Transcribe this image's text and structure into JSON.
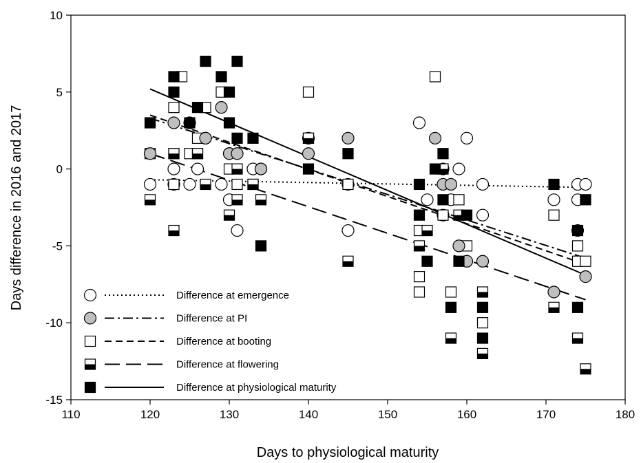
{
  "chart_data": {
    "type": "scatter",
    "xlabel": "Days to physiological maturity",
    "ylabel": "Days difference in 2016 and 2017",
    "xlim": [
      110,
      180
    ],
    "ylim": [
      -15,
      10
    ],
    "xticks": [
      110,
      120,
      130,
      140,
      150,
      160,
      170,
      180
    ],
    "yticks": [
      -15,
      -10,
      -5,
      0,
      5,
      10
    ],
    "grid": false,
    "legend_position": "bottom-left",
    "series": [
      {
        "name": "Difference at emergence",
        "marker": "open-circle",
        "line_style": "dotted",
        "color": "#000000",
        "fill": "#ffffff",
        "points": [
          [
            120,
            -1
          ],
          [
            123,
            0
          ],
          [
            123,
            -1
          ],
          [
            125,
            -1
          ],
          [
            126,
            0
          ],
          [
            127,
            2
          ],
          [
            129,
            -1
          ],
          [
            130,
            -2
          ],
          [
            130,
            1
          ],
          [
            131,
            -4
          ],
          [
            133,
            0
          ],
          [
            134,
            0
          ],
          [
            140,
            2
          ],
          [
            145,
            -4
          ],
          [
            145,
            -1
          ],
          [
            154,
            3
          ],
          [
            155,
            -2
          ],
          [
            157,
            -3
          ],
          [
            158,
            -2
          ],
          [
            159,
            0
          ],
          [
            160,
            2
          ],
          [
            162,
            -1
          ],
          [
            162,
            -3
          ],
          [
            171,
            -2
          ],
          [
            174,
            -1
          ],
          [
            174,
            -2
          ],
          [
            175,
            -1
          ]
        ],
        "trend": {
          "x": [
            120,
            175
          ],
          "y": [
            -0.7,
            -1.2
          ]
        }
      },
      {
        "name": "Difference at PI",
        "marker": "grey-circle",
        "line_style": "dash-dot",
        "color": "#000000",
        "fill": "#bfbfbf",
        "points": [
          [
            120,
            1
          ],
          [
            123,
            3
          ],
          [
            125,
            3
          ],
          [
            127,
            2
          ],
          [
            129,
            4
          ],
          [
            130,
            1
          ],
          [
            131,
            1
          ],
          [
            134,
            0
          ],
          [
            140,
            1
          ],
          [
            145,
            2
          ],
          [
            156,
            2
          ],
          [
            157,
            0
          ],
          [
            157,
            -1
          ],
          [
            158,
            -1
          ],
          [
            159,
            -5
          ],
          [
            160,
            -6
          ],
          [
            162,
            -6
          ],
          [
            171,
            -8
          ],
          [
            174,
            -4
          ],
          [
            175,
            -7
          ]
        ],
        "trend": {
          "x": [
            120,
            175
          ],
          "y": [
            3.3,
            -5.8
          ]
        }
      },
      {
        "name": "Difference at booting",
        "marker": "open-square",
        "line_style": "dashed",
        "color": "#000000",
        "fill": "#ffffff",
        "points": [
          [
            120,
            1
          ],
          [
            123,
            4
          ],
          [
            123,
            1
          ],
          [
            123,
            -1
          ],
          [
            124,
            6
          ],
          [
            125,
            1
          ],
          [
            126,
            2
          ],
          [
            126,
            1
          ],
          [
            127,
            4
          ],
          [
            129,
            5
          ],
          [
            130,
            0
          ],
          [
            131,
            -1
          ],
          [
            133,
            -1
          ],
          [
            140,
            5
          ],
          [
            140,
            2
          ],
          [
            145,
            -1
          ],
          [
            154,
            -4
          ],
          [
            154,
            -7
          ],
          [
            154,
            -8
          ],
          [
            156,
            6
          ],
          [
            157,
            -3
          ],
          [
            158,
            -8
          ],
          [
            159,
            -2
          ],
          [
            160,
            -5
          ],
          [
            162,
            -10
          ],
          [
            171,
            -3
          ],
          [
            174,
            -5
          ],
          [
            174,
            -6
          ],
          [
            175,
            -6
          ]
        ],
        "trend": {
          "x": [
            120,
            175
          ],
          "y": [
            3.5,
            -6.2
          ]
        }
      },
      {
        "name": "Difference at flowering",
        "marker": "half-filled-square",
        "line_style": "long-dash",
        "color": "#000000",
        "fill": "#000000",
        "points": [
          [
            120,
            -2
          ],
          [
            123,
            1
          ],
          [
            123,
            -4
          ],
          [
            126,
            1
          ],
          [
            127,
            -1
          ],
          [
            130,
            -3
          ],
          [
            131,
            0
          ],
          [
            131,
            -2
          ],
          [
            133,
            -1
          ],
          [
            134,
            -2
          ],
          [
            140,
            2
          ],
          [
            145,
            -6
          ],
          [
            154,
            -5
          ],
          [
            155,
            -4
          ],
          [
            157,
            0
          ],
          [
            158,
            -11
          ],
          [
            159,
            -3
          ],
          [
            162,
            -8
          ],
          [
            162,
            -12
          ],
          [
            171,
            -9
          ],
          [
            174,
            -11
          ],
          [
            175,
            -13
          ]
        ],
        "trend": {
          "x": [
            120,
            175
          ],
          "y": [
            1.0,
            -8.5
          ]
        }
      },
      {
        "name": "Difference at physiological maturity",
        "marker": "filled-square",
        "line_style": "solid",
        "color": "#000000",
        "fill": "#000000",
        "points": [
          [
            120,
            3
          ],
          [
            123,
            6
          ],
          [
            123,
            5
          ],
          [
            125,
            3
          ],
          [
            126,
            4
          ],
          [
            127,
            7
          ],
          [
            129,
            6
          ],
          [
            130,
            5
          ],
          [
            130,
            3
          ],
          [
            131,
            7
          ],
          [
            131,
            2
          ],
          [
            133,
            2
          ],
          [
            134,
            -5
          ],
          [
            140,
            0
          ],
          [
            145,
            1
          ],
          [
            154,
            -1
          ],
          [
            154,
            -3
          ],
          [
            155,
            -6
          ],
          [
            156,
            0
          ],
          [
            157,
            1
          ],
          [
            157,
            -2
          ],
          [
            158,
            -9
          ],
          [
            159,
            -6
          ],
          [
            160,
            -3
          ],
          [
            162,
            -9
          ],
          [
            162,
            -11
          ],
          [
            171,
            -1
          ],
          [
            174,
            -4
          ],
          [
            174,
            -9
          ],
          [
            175,
            -2
          ]
        ],
        "trend": {
          "x": [
            120,
            175
          ],
          "y": [
            5.2,
            -6.9
          ]
        }
      }
    ]
  }
}
